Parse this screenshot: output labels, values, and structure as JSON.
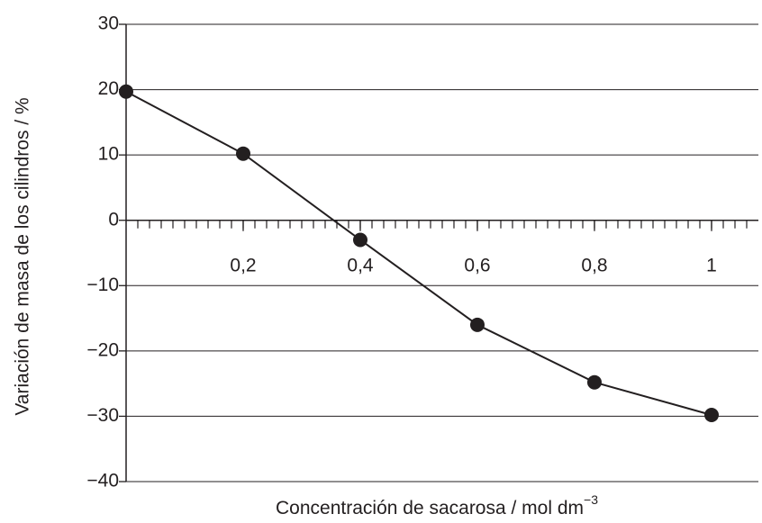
{
  "chart_data": {
    "type": "line",
    "ylabel": "Variación de masa de los cilindros / %",
    "xlabel": {
      "text": "Concentración de sacarosa / mol dm",
      "superscript": "−3"
    },
    "x": [
      0,
      0.2,
      0.4,
      0.6,
      0.8,
      1
    ],
    "series": [
      {
        "color": "#231f20",
        "values": [
          19.7,
          10.2,
          -3,
          -16,
          -24.8,
          -29.8
        ]
      }
    ],
    "xlim": [
      0,
      1.08
    ],
    "ylim": [
      -40,
      30
    ],
    "xticks": [
      {
        "value": 0.2,
        "label": "0,2"
      },
      {
        "value": 0.4,
        "label": "0,4"
      },
      {
        "value": 0.6,
        "label": "0,6"
      },
      {
        "value": 0.8,
        "label": "0,8"
      },
      1
    ],
    "xminorticks": [
      0.02,
      0.04,
      0.06,
      0.08,
      0.1,
      0.12,
      0.14,
      0.16,
      0.18,
      0.2,
      0.22,
      0.24,
      0.26,
      0.28,
      0.3,
      0.32,
      0.34,
      0.36,
      0.38,
      0.4,
      0.42,
      0.44,
      0.46,
      0.48,
      0.5,
      0.52,
      0.54,
      0.56,
      0.58,
      0.6,
      0.62,
      0.64,
      0.66,
      0.68,
      0.7,
      0.72,
      0.74,
      0.76,
      0.78,
      0.8,
      0.82,
      0.84,
      0.86,
      0.88,
      0.9,
      0.92,
      0.94,
      0.96,
      0.98,
      1,
      1.02,
      1.04,
      1.06
    ],
    "yticks": [
      30,
      20,
      10,
      0,
      {
        "value": -10,
        "label": "−10"
      },
      {
        "value": -20,
        "label": "−20"
      },
      {
        "value": -30,
        "label": "−30"
      },
      {
        "value": -40,
        "label": "−40"
      }
    ],
    "grid": true
  }
}
